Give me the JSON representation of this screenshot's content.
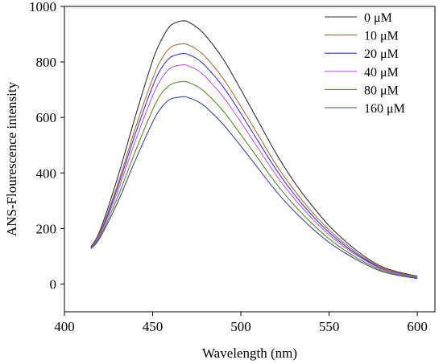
{
  "chart_data": {
    "type": "line",
    "xlabel": "Wavelength (nm)",
    "ylabel": "ANS-Flourescence intensity",
    "xlim": [
      400,
      610
    ],
    "ylim": [
      -100,
      1000
    ],
    "xticks": [
      400,
      450,
      500,
      550,
      600
    ],
    "yticks": [
      0,
      200,
      400,
      600,
      800,
      1000
    ],
    "legend_position": "top-right",
    "grid": false,
    "x": [
      415,
      420,
      430,
      440,
      450,
      455,
      460,
      465,
      468,
      470,
      475,
      480,
      490,
      500,
      510,
      520,
      530,
      540,
      550,
      560,
      570,
      580,
      590,
      600
    ],
    "series": [
      {
        "name": "0 μM",
        "color": "#333333",
        "values": [
          135,
          190,
          380,
          600,
          805,
          880,
          930,
          946,
          948,
          945,
          925,
          895,
          810,
          700,
          585,
          470,
          370,
          285,
          210,
          150,
          100,
          62,
          42,
          28
        ]
      },
      {
        "name": "10 μM",
        "color": "#b07040",
        "values": [
          133,
          183,
          355,
          558,
          740,
          810,
          852,
          864,
          865,
          862,
          845,
          818,
          740,
          640,
          535,
          430,
          340,
          262,
          195,
          140,
          94,
          58,
          39,
          26
        ]
      },
      {
        "name": "20 μM",
        "color": "#3a3ad0",
        "values": [
          132,
          178,
          345,
          538,
          712,
          778,
          816,
          828,
          830,
          827,
          812,
          785,
          710,
          614,
          512,
          412,
          325,
          250,
          186,
          133,
          90,
          55,
          37,
          25
        ]
      },
      {
        "name": "40 μM",
        "color": "#c060e0",
        "values": [
          130,
          175,
          330,
          512,
          678,
          740,
          778,
          788,
          790,
          787,
          772,
          746,
          674,
          583,
          487,
          392,
          310,
          238,
          177,
          127,
          86,
          53,
          36,
          24
        ]
      },
      {
        "name": "80 μM",
        "color": "#5a8a30",
        "values": [
          129,
          170,
          310,
          475,
          628,
          686,
          718,
          728,
          730,
          727,
          713,
          690,
          623,
          538,
          450,
          362,
          286,
          220,
          163,
          117,
          79,
          49,
          33,
          22
        ]
      },
      {
        "name": "160 μM",
        "color": "#404a9c",
        "values": [
          127,
          165,
          292,
          443,
          583,
          636,
          666,
          673,
          675,
          672,
          659,
          638,
          575,
          497,
          415,
          334,
          264,
          203,
          150,
          108,
          73,
          45,
          30,
          20
        ]
      }
    ]
  }
}
